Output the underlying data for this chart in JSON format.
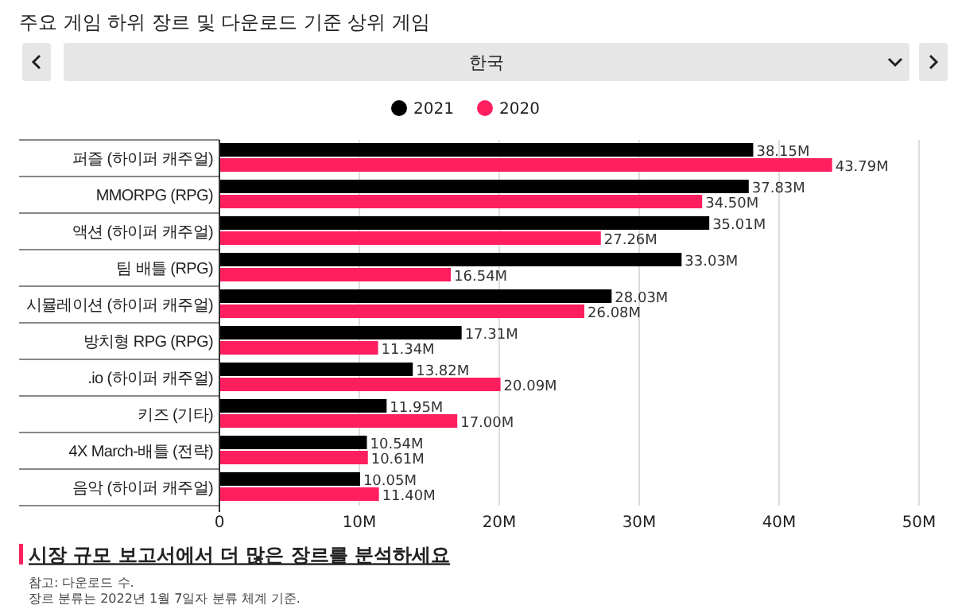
{
  "chart_data": {
    "type": "bar",
    "orientation": "horizontal",
    "title": "주요 게임 하위 장르 및 다운로드 기준 상위 게임",
    "subtitle": "한국",
    "categories": [
      "퍼즐 (하이퍼 캐주얼)",
      "MMORPG (RPG)",
      "액션 (하이퍼 캐주얼)",
      "팀 배틀 (RPG)",
      "시뮬레이션 (하이퍼 캐주얼)",
      "방치형 RPG (RPG)",
      ".io (하이퍼 캐주얼)",
      "키즈 (기타)",
      "4X March-배틀 (전략)",
      "음악 (하이퍼 캐주얼)"
    ],
    "series": [
      {
        "name": "2021",
        "color": "#000000",
        "values": [
          38.15,
          37.83,
          35.01,
          33.03,
          28.03,
          17.31,
          13.82,
          11.95,
          10.54,
          10.05
        ],
        "value_labels": [
          "38.15M",
          "37.83M",
          "35.01M",
          "33.03M",
          "28.03M",
          "17.31M",
          "13.82M",
          "11.95M",
          "10.54M",
          "10.05M"
        ]
      },
      {
        "name": "2020",
        "color": "#ff1f5f",
        "values": [
          43.79,
          34.5,
          27.26,
          16.54,
          26.08,
          11.34,
          20.09,
          17.0,
          10.61,
          11.4
        ],
        "value_labels": [
          "43.79M",
          "34.50M",
          "27.26M",
          "16.54M",
          "26.08M",
          "11.34M",
          "20.09M",
          "17.00M",
          "10.61M",
          "11.40M"
        ]
      }
    ],
    "xlim": [
      0,
      50
    ],
    "xticks": [
      0,
      {
        "value": 10,
        "label": "10M"
      },
      {
        "value": 20,
        "label": "20M"
      },
      {
        "value": 30,
        "label": "30M"
      },
      {
        "value": 40,
        "label": "40M"
      },
      {
        "value": 50,
        "label": "50M"
      }
    ],
    "grid": "x",
    "legend": "top",
    "annotations": [
      "시장 규모 보고서에서 더 많은 장르를 분석하세요",
      "참고: 다운로드 수.",
      "장르 분류는 2022년 1월 7일자 분류 체계 기준."
    ]
  }
}
